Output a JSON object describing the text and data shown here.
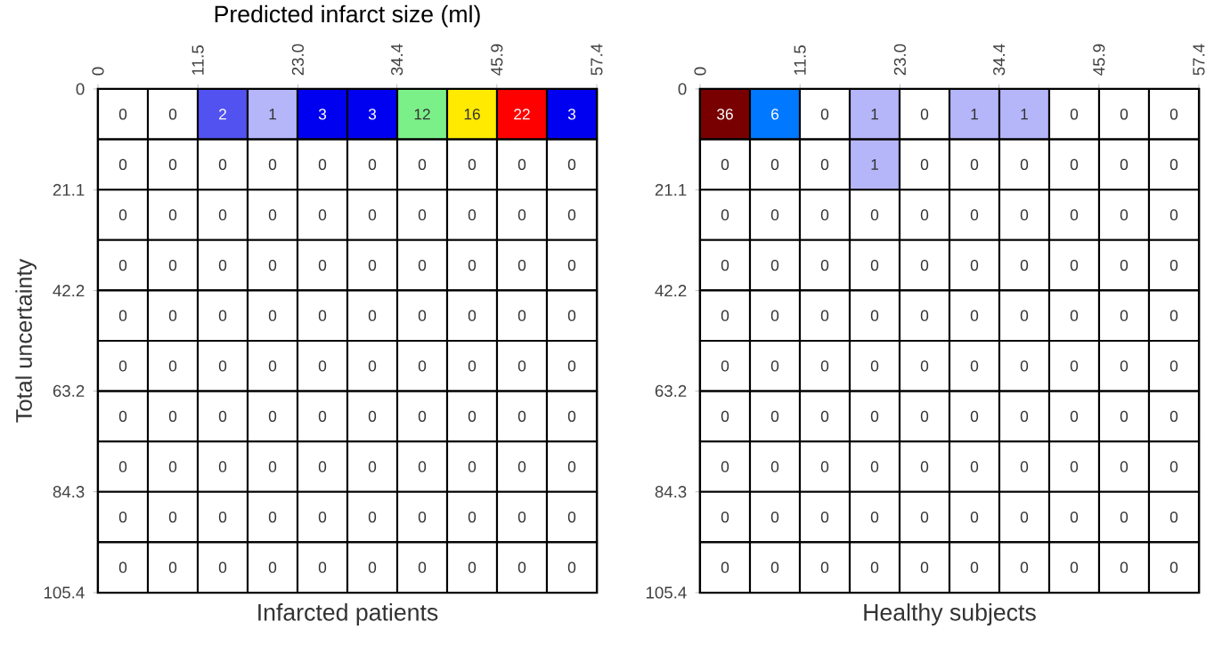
{
  "chart_data": [
    {
      "type": "heatmap",
      "data_labels": true,
      "title": "Infarcted patients",
      "xlabel": "Predicted infarct size (ml)",
      "ylabel": "Total uncertainty",
      "x": [
        2.87,
        8.61,
        14.35,
        20.09,
        25.83,
        31.57,
        37.31,
        43.05,
        48.79,
        54.53
      ],
      "y": [
        5.27,
        15.81,
        26.35,
        36.89,
        47.43,
        57.97,
        68.51,
        79.05,
        89.59,
        100.13
      ],
      "xlim": [
        0,
        57.4
      ],
      "xticks": [
        0,
        11.5,
        {
          "value": 23.0,
          "label": "23.0"
        },
        34.4,
        45.9,
        57.4
      ],
      "ylim": [
        105.4,
        0
      ],
      "yticks": [
        0,
        21.1,
        42.2,
        63.2,
        84.3,
        105.4
      ],
      "cells": [
        [
          0,
          0,
          2,
          1,
          3,
          3,
          12,
          16,
          22,
          3
        ],
        [
          0,
          0,
          0,
          0,
          0,
          0,
          0,
          0,
          0,
          0
        ],
        [
          0,
          0,
          0,
          0,
          0,
          0,
          0,
          0,
          0,
          0
        ],
        [
          0,
          0,
          0,
          0,
          0,
          0,
          0,
          0,
          0,
          0
        ],
        [
          0,
          0,
          0,
          0,
          0,
          0,
          0,
          0,
          0,
          0
        ],
        [
          0,
          0,
          0,
          0,
          0,
          0,
          0,
          0,
          0,
          0
        ],
        [
          0,
          0,
          0,
          0,
          0,
          0,
          0,
          0,
          0,
          0
        ],
        [
          0,
          0,
          0,
          0,
          0,
          0,
          0,
          0,
          0,
          0
        ],
        [
          0,
          0,
          0,
          0,
          0,
          0,
          0,
          0,
          0,
          0
        ],
        [
          0,
          0,
          0,
          0,
          0,
          0,
          0,
          0,
          0,
          0
        ]
      ]
    },
    {
      "type": "heatmap",
      "data_labels": true,
      "title": "Healthy subjects",
      "x": [
        2.87,
        8.61,
        14.35,
        20.09,
        25.83,
        31.57,
        37.31,
        43.05,
        48.79,
        54.53
      ],
      "y": [
        5.27,
        15.81,
        26.35,
        36.89,
        47.43,
        57.97,
        68.51,
        79.05,
        89.59,
        100.13
      ],
      "xlim": [
        0,
        57.4
      ],
      "xticks": [
        0,
        11.5,
        {
          "value": 23.0,
          "label": "23.0"
        },
        34.4,
        45.9,
        57.4
      ],
      "ylim": [
        105.4,
        0
      ],
      "yticks": [
        0,
        21.1,
        42.2,
        63.2,
        84.3,
        105.4
      ],
      "cells": [
        [
          36,
          6,
          0,
          1,
          0,
          1,
          1,
          0,
          0,
          0
        ],
        [
          0,
          0,
          0,
          1,
          0,
          0,
          0,
          0,
          0,
          0
        ],
        [
          0,
          0,
          0,
          0,
          0,
          0,
          0,
          0,
          0,
          0
        ],
        [
          0,
          0,
          0,
          0,
          0,
          0,
          0,
          0,
          0,
          0
        ],
        [
          0,
          0,
          0,
          0,
          0,
          0,
          0,
          0,
          0,
          0
        ],
        [
          0,
          0,
          0,
          0,
          0,
          0,
          0,
          0,
          0,
          0
        ],
        [
          0,
          0,
          0,
          0,
          0,
          0,
          0,
          0,
          0,
          0
        ],
        [
          0,
          0,
          0,
          0,
          0,
          0,
          0,
          0,
          0,
          0
        ],
        [
          0,
          0,
          0,
          0,
          0,
          0,
          0,
          0,
          0,
          0
        ],
        [
          0,
          0,
          0,
          0,
          0,
          0,
          0,
          0,
          0,
          0
        ]
      ]
    }
  ]
}
